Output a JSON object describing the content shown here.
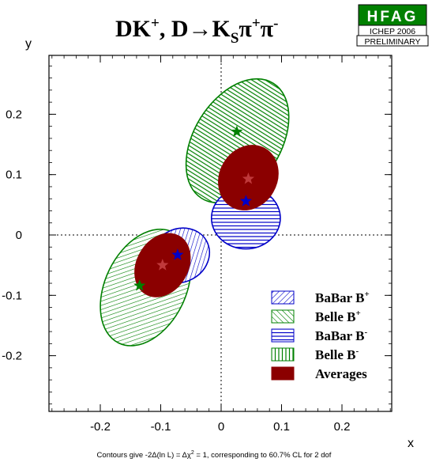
{
  "chart_data": {
    "type": "contour",
    "title": {
      "main": "DK",
      "sup1": "+",
      "mid": ", D→K",
      "sub": "S",
      "pi1": "π",
      "sup2": "+",
      "pi2": "π",
      "sup3": "-"
    },
    "xlabel": "x",
    "ylabel": "y",
    "xlim": [
      -0.3,
      0.3
    ],
    "ylim": [
      -0.3,
      0.3
    ],
    "xticks": [
      -0.2,
      -0.1,
      0,
      0.1,
      0.2
    ],
    "xtick_labels": [
      "-0.2",
      "-0.1",
      "0",
      "0.1",
      "0.2"
    ],
    "yticks": [
      -0.2,
      -0.1,
      0,
      0.1,
      0.2
    ],
    "ytick_labels": [
      "-0.2",
      "-0.1",
      "0",
      "0.1",
      "0.2"
    ],
    "reference_lines": {
      "x": 0,
      "y": 0,
      "style": "dotted"
    },
    "series": [
      {
        "name": "BaBar B+",
        "label": {
          "base": "BaBar B",
          "sup": "+"
        },
        "color": "#0000c8",
        "pattern": "diagonal-down",
        "center": [
          -0.068,
          -0.034
        ],
        "semi_axes": [
          0.05,
          0.044
        ],
        "angle_deg": 28,
        "star": [
          -0.072,
          -0.033
        ]
      },
      {
        "name": "Belle B+",
        "label": {
          "base": "Belle B",
          "sup": "+"
        },
        "color": "#008000",
        "pattern": "diagonal-up",
        "center": [
          -0.125,
          -0.087
        ],
        "semi_axes": [
          0.102,
          0.067
        ],
        "angle_deg": 64,
        "star": [
          -0.135,
          -0.084
        ]
      },
      {
        "name": "BaBar B-",
        "label": {
          "base": "BaBar B",
          "sup": "-"
        },
        "color": "#0000c8",
        "pattern": "horizontal",
        "center": [
          0.041,
          0.028
        ],
        "semi_axes": [
          0.057,
          0.051
        ],
        "angle_deg": 0,
        "star": [
          0.041,
          0.056
        ]
      },
      {
        "name": "Belle B-",
        "label": {
          "base": "Belle B",
          "sup": "-"
        },
        "color": "#008000",
        "pattern": "vertical",
        "center": [
          0.027,
          0.156
        ],
        "semi_axes": [
          0.112,
          0.072
        ],
        "angle_deg": 58,
        "star": [
          0.026,
          0.171
        ]
      },
      {
        "name": "Averages",
        "label": {
          "base": "Averages",
          "sup": ""
        },
        "color": "#8b0000",
        "pattern": "solid",
        "ellipses": [
          {
            "center": [
              -0.097,
              -0.05
            ],
            "semi_axes": [
              0.055,
              0.042
            ],
            "angle_deg": 60,
            "star": [
              -0.097,
              -0.05
            ]
          },
          {
            "center": [
              0.045,
              0.095
            ],
            "semi_axes": [
              0.055,
              0.047
            ],
            "angle_deg": 60,
            "star": [
              0.045,
              0.093
            ]
          }
        ]
      }
    ],
    "legend_placement": "bottom-right",
    "badge": {
      "name": "HFAG",
      "event": "ICHEP 2006",
      "status": "PRELIMINARY"
    },
    "footnote": {
      "t1": "Contours give -2Δ(ln L) = Δχ",
      "sup": "2",
      "t2": " = 1, corresponding to 60.7% CL for 2 dof"
    }
  }
}
